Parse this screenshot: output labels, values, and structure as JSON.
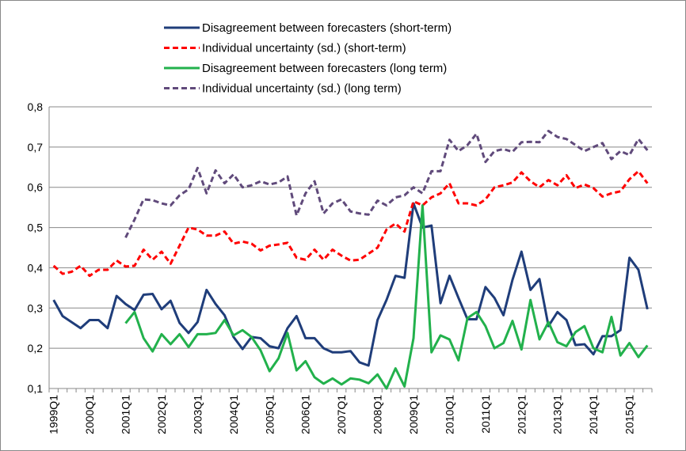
{
  "chart_data": {
    "type": "line",
    "categories": [
      "1999Q1",
      null,
      null,
      null,
      "2000Q1",
      null,
      null,
      null,
      "2001Q1",
      null,
      null,
      null,
      "2002Q1",
      null,
      null,
      null,
      "2003Q1",
      null,
      null,
      null,
      "2004Q1",
      null,
      null,
      null,
      "2005Q1",
      null,
      null,
      null,
      "2006Q1",
      null,
      null,
      null,
      "2007Q1",
      null,
      null,
      null,
      "2008Q1",
      null,
      null,
      null,
      "2009Q1",
      null,
      null,
      null,
      "2010Q1",
      null,
      null,
      null,
      "2011Q1",
      null,
      null,
      null,
      "2012Q1",
      null,
      null,
      null,
      "2013Q1",
      null,
      null,
      null,
      "2014Q1",
      null,
      null,
      null,
      "2015Q1",
      null,
      null
    ],
    "series": [
      {
        "name": "Disagreement between forecasters (short-term)",
        "color": "#1f3d7a",
        "dash": "solid",
        "values": [
          0.32,
          0.28,
          0.265,
          0.25,
          0.27,
          0.27,
          0.25,
          0.33,
          0.31,
          0.295,
          0.333,
          0.335,
          0.297,
          0.318,
          0.263,
          0.238,
          0.265,
          0.345,
          0.31,
          0.282,
          0.228,
          0.198,
          0.228,
          0.225,
          0.205,
          0.2,
          0.25,
          0.28,
          0.225,
          0.225,
          0.2,
          0.19,
          0.19,
          0.193,
          0.165,
          0.157,
          0.27,
          0.32,
          0.38,
          0.375,
          0.56,
          0.5,
          0.505,
          0.312,
          0.38,
          0.325,
          0.272,
          0.272,
          0.352,
          0.325,
          0.282,
          0.37,
          0.44,
          0.345,
          0.372,
          0.255,
          0.29,
          0.27,
          0.208,
          0.21,
          0.185,
          0.23,
          0.23,
          0.245,
          0.425,
          0.395,
          0.297
        ]
      },
      {
        "name": "Individual uncertainty (sd.) (short-term)",
        "color": "#ff0000",
        "dash": "dashed",
        "values": [
          0.405,
          0.385,
          0.39,
          0.405,
          0.38,
          0.395,
          0.395,
          0.418,
          0.403,
          0.405,
          0.445,
          0.42,
          0.44,
          0.41,
          0.455,
          0.5,
          0.495,
          0.48,
          0.48,
          0.49,
          0.46,
          0.465,
          0.46,
          0.443,
          0.455,
          0.458,
          0.462,
          0.425,
          0.42,
          0.445,
          0.42,
          0.445,
          0.43,
          0.418,
          0.42,
          0.435,
          0.45,
          0.495,
          0.51,
          0.49,
          0.565,
          0.555,
          0.575,
          0.585,
          0.61,
          0.56,
          0.56,
          0.555,
          0.57,
          0.6,
          0.605,
          0.612,
          0.637,
          0.615,
          0.6,
          0.618,
          0.605,
          0.63,
          0.598,
          0.607,
          0.598,
          0.577,
          0.585,
          0.59,
          0.62,
          0.64,
          0.61
        ]
      },
      {
        "name": "Disagreement between forecasters (long term)",
        "color": "#22b14c",
        "dash": "solid",
        "values": [
          null,
          null,
          null,
          null,
          null,
          null,
          null,
          null,
          0.262,
          0.29,
          0.225,
          0.192,
          0.235,
          0.21,
          0.235,
          0.203,
          0.235,
          0.235,
          0.238,
          0.27,
          0.232,
          0.245,
          0.228,
          0.195,
          0.143,
          0.175,
          0.238,
          0.145,
          0.168,
          0.128,
          0.112,
          0.125,
          0.11,
          0.125,
          0.122,
          0.113,
          0.135,
          0.1,
          0.15,
          0.105,
          0.225,
          0.555,
          0.19,
          0.232,
          0.222,
          0.17,
          0.275,
          0.29,
          0.255,
          0.2,
          0.213,
          0.268,
          0.197,
          0.32,
          0.222,
          0.265,
          0.215,
          0.205,
          0.24,
          0.255,
          0.2,
          0.19,
          0.278,
          0.182,
          0.213,
          0.178,
          0.207
        ]
      },
      {
        "name": "Individual uncertainty (sd.) (long term)",
        "color": "#604a7b",
        "dash": "dashed",
        "values": [
          null,
          null,
          null,
          null,
          null,
          null,
          null,
          null,
          0.475,
          0.52,
          0.57,
          0.568,
          0.56,
          0.555,
          0.58,
          0.595,
          0.648,
          0.585,
          0.642,
          0.61,
          0.632,
          0.6,
          0.605,
          0.615,
          0.607,
          0.612,
          0.627,
          0.53,
          0.585,
          0.615,
          0.535,
          0.56,
          0.57,
          0.54,
          0.535,
          0.532,
          0.567,
          0.555,
          0.575,
          0.58,
          0.6,
          0.585,
          0.64,
          0.64,
          0.718,
          0.69,
          0.705,
          0.733,
          0.663,
          0.69,
          0.695,
          0.688,
          0.712,
          0.713,
          0.712,
          0.74,
          0.725,
          0.72,
          0.705,
          0.69,
          0.7,
          0.71,
          0.67,
          0.69,
          0.68,
          0.72,
          0.692
        ]
      }
    ],
    "ylim": [
      0.1,
      0.8
    ],
    "yticks": [
      {
        "value": 0.1,
        "label": "0,1"
      },
      {
        "value": 0.2,
        "label": "0,2"
      },
      {
        "value": 0.3,
        "label": "0,3"
      },
      {
        "value": 0.4,
        "label": "0,4"
      },
      {
        "value": 0.5,
        "label": "0,5"
      },
      {
        "value": 0.6,
        "label": "0,6"
      },
      {
        "value": 0.7,
        "label": "0,7"
      },
      {
        "value": 0.8,
        "label": "0,8"
      }
    ],
    "grid": true
  }
}
